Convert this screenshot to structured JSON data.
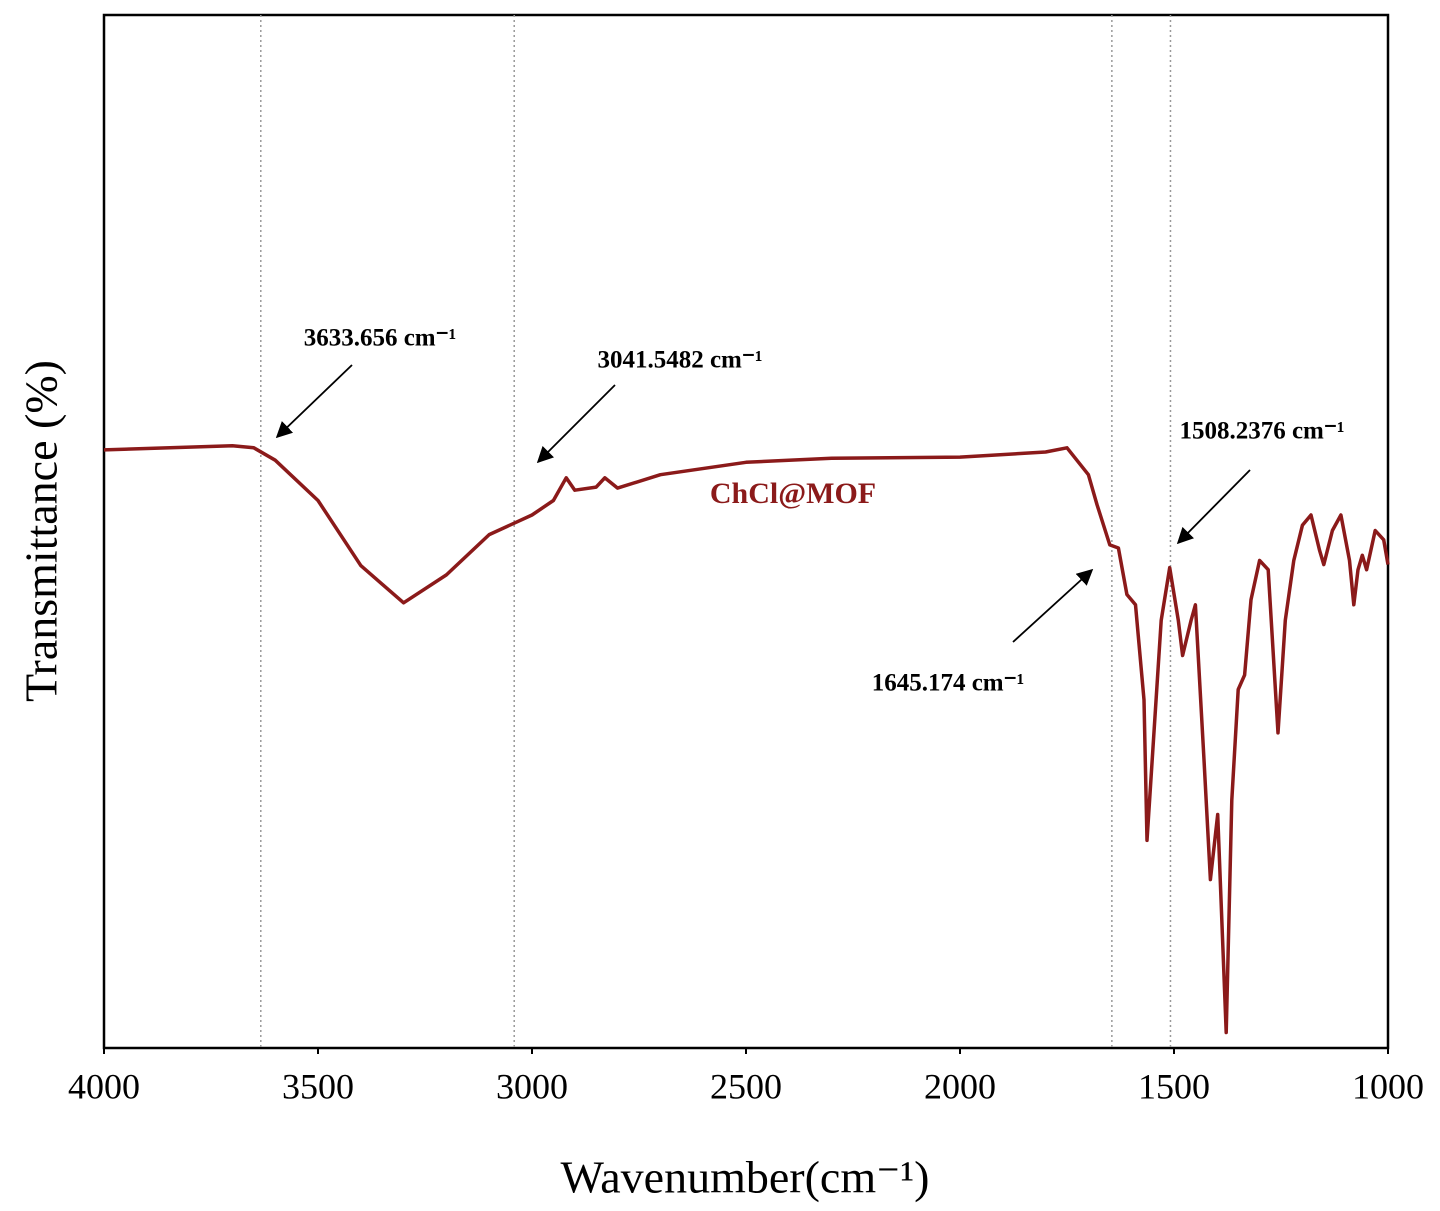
{
  "chart_data": {
    "type": "line",
    "xlabel": "Wavenumber(cm⁻¹)",
    "ylabel": "Transmittance (%)",
    "xlim": [
      4000,
      1000
    ],
    "xticks": [
      4000,
      3500,
      3000,
      2500,
      2000,
      1500,
      1000
    ],
    "ylim": [
      0,
      100
    ],
    "grid": false,
    "x": [
      4000,
      3700,
      3650,
      3600,
      3500,
      3400,
      3300,
      3200,
      3100,
      3000,
      2950,
      2920,
      2900,
      2850,
      2830,
      2800,
      2700,
      2500,
      2300,
      2000,
      1800,
      1750,
      1700,
      1680,
      1650,
      1630,
      1610,
      1590,
      1570,
      1563,
      1530,
      1510,
      1490,
      1480,
      1460,
      1450,
      1430,
      1415,
      1398,
      1378,
      1365,
      1350,
      1335,
      1320,
      1300,
      1280,
      1257,
      1240,
      1220,
      1200,
      1180,
      1160,
      1150,
      1130,
      1110,
      1090,
      1080,
      1070,
      1060,
      1050,
      1030,
      1010,
      1000
    ],
    "series": [
      {
        "name": "ChCl@MOF",
        "color": "#8b1a1a",
        "values": [
          57.9,
          58.3,
          58.1,
          56.9,
          53.0,
          46.7,
          43.1,
          45.8,
          49.7,
          51.6,
          53.0,
          55.2,
          54.0,
          54.3,
          55.2,
          54.2,
          55.5,
          56.7,
          57.1,
          57.2,
          57.7,
          58.1,
          55.5,
          52.6,
          48.7,
          48.4,
          43.9,
          42.9,
          33.7,
          20.1,
          41.4,
          46.5,
          41.4,
          38.0,
          41.4,
          42.9,
          27.9,
          16.3,
          22.6,
          1.5,
          24.0,
          34.7,
          36.1,
          43.4,
          47.2,
          46.3,
          30.5,
          41.4,
          47.2,
          50.6,
          51.6,
          48.2,
          46.8,
          50.1,
          51.6,
          47.2,
          42.9,
          46.3,
          47.7,
          46.3,
          50.1,
          49.2,
          46.8
        ]
      }
    ],
    "annotations": [
      {
        "x": 3633.656,
        "text": "3633.656 cm⁻¹"
      },
      {
        "x": 3041.5482,
        "text": "3041.5482 cm⁻¹"
      },
      {
        "x": 1508.2376,
        "text": "1508.2376 cm⁻¹"
      },
      {
        "x": 1645.174,
        "text": "1645.174 cm⁻¹"
      }
    ]
  }
}
